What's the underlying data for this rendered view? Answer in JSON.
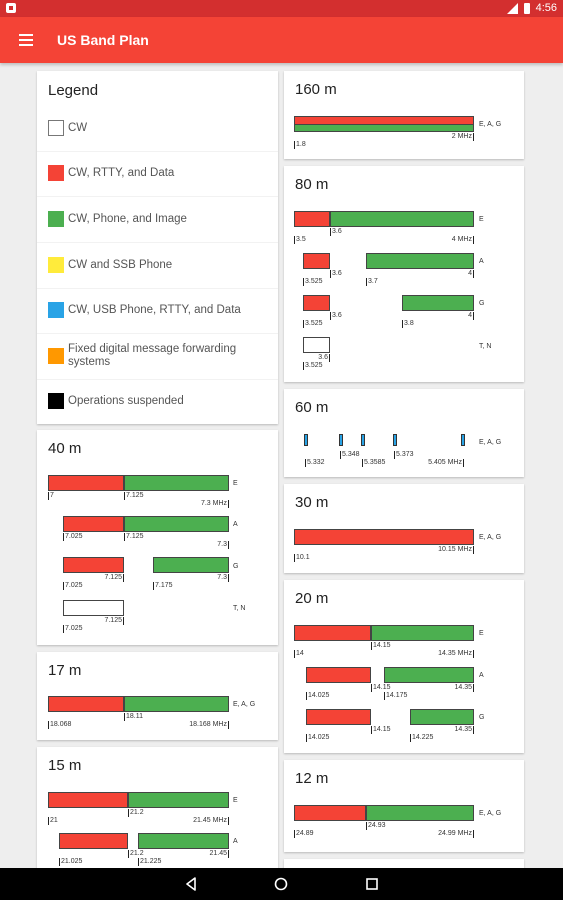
{
  "status": {
    "time": "4:56"
  },
  "app": {
    "title": "US Band Plan"
  },
  "colors": {
    "cw": "#ffffff",
    "rtty": "#f44336",
    "phone": "#4caf50",
    "ssb": "#ffeb3b",
    "usb": "#29a3e6",
    "digital": "#ff9800",
    "suspended": "#000000"
  },
  "legend": {
    "title": "Legend",
    "items": [
      {
        "label": "CW",
        "color": "#ffffff"
      },
      {
        "label": "CW, RTTY, and Data",
        "color": "#f44336"
      },
      {
        "label": "CW, Phone, and Image",
        "color": "#4caf50"
      },
      {
        "label": "CW and SSB Phone",
        "color": "#ffeb3b"
      },
      {
        "label": "CW, USB Phone, RTTY, and Data",
        "color": "#29a3e6"
      },
      {
        "label": "Fixed digital message forwarding systems",
        "color": "#ff9800"
      },
      {
        "label": "Operations suspended",
        "color": "#000000"
      }
    ]
  },
  "bands": {
    "b160": {
      "title": "160 m",
      "rows": [
        {
          "license": "E, A, G",
          "bars": [
            "red/green"
          ],
          "tick_start": "1.8",
          "tick_end": "2 MHz"
        }
      ]
    },
    "b80": {
      "title": "80 m",
      "rows": [
        {
          "license": "E",
          "tick_start": "3.5",
          "tick_mid": "3.6",
          "tick_end": "4 MHz"
        },
        {
          "license": "A",
          "t1": "3.525",
          "t2": "3.6",
          "t3": "3.7",
          "t4": "4"
        },
        {
          "license": "G",
          "t1": "3.525",
          "t2": "3.6",
          "t3": "3.8",
          "t4": "4"
        },
        {
          "license": "T, N",
          "t1": "3.525",
          "t2": "3.6"
        }
      ]
    },
    "b60": {
      "title": "60 m",
      "license": "E, A, G",
      "channels": [
        "5.332",
        "5.348",
        "5.3585",
        "5.373",
        "5.405 MHz"
      ]
    },
    "b30": {
      "title": "30 m",
      "license": "E, A, G",
      "tick_start": "10.1",
      "tick_end": "10.15 MHz"
    },
    "b20": {
      "title": "20 m",
      "rows": [
        {
          "license": "E",
          "t1": "14",
          "t2": "14.15",
          "t3": "14.35 MHz"
        },
        {
          "license": "A",
          "t1": "14.025",
          "t2": "14.15",
          "t3": "14.175",
          "t4": "14.35",
          "t5": "14.15"
        },
        {
          "license": "G",
          "t1": "14.025",
          "t2": "14.15",
          "t3": "14.225",
          "t4": "14.35"
        }
      ]
    },
    "b12": {
      "title": "12 m",
      "license": "E, A, G",
      "tick_start": "24.89",
      "tick_mid": "24.93",
      "tick_end": "24.99 MHz"
    },
    "b40": {
      "title": "40 m",
      "rows": [
        {
          "license": "E",
          "t1": "7",
          "t2": "7.125",
          "t3": "7.3 MHz"
        },
        {
          "license": "A",
          "t1": "7.025",
          "t2": "7.125",
          "t3": "7.3"
        },
        {
          "license": "G",
          "t1": "7.025",
          "t2": "7.125",
          "t3": "7.175",
          "t4": "7.3"
        },
        {
          "license": "T, N",
          "t1": "7.025",
          "t2": "7.125"
        }
      ]
    },
    "b17": {
      "title": "17 m",
      "license": "E, A, G",
      "tick_start": "18.068",
      "tick_mid": "18.11",
      "tick_end": "18.168 MHz"
    },
    "b15": {
      "title": "15 m",
      "rows": [
        {
          "license": "E",
          "t1": "21",
          "t2": "21.2",
          "t3": "21.45 MHz"
        },
        {
          "license": "A",
          "t1": "21.025",
          "t2": "21.2",
          "t3": "21.225",
          "t4": "21.45"
        }
      ]
    }
  }
}
